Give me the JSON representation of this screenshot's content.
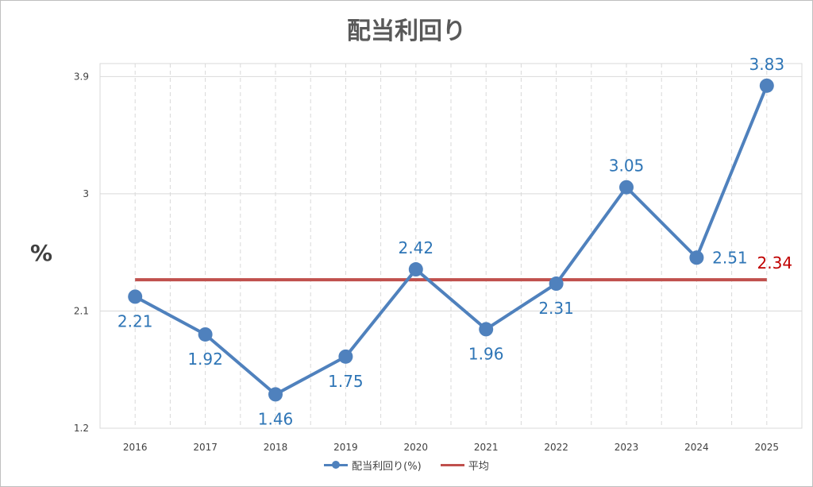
{
  "chart_data": {
    "type": "line",
    "title": "配当利回り",
    "ylabel": "%",
    "xlabel": "",
    "categories": [
      "2016",
      "2017",
      "2018",
      "2019",
      "2020",
      "2021",
      "2022",
      "2023",
      "2024",
      "2025"
    ],
    "ylim": [
      1.2,
      4.0
    ],
    "yticks": [
      "1.2",
      "2.1",
      "3",
      "3.9"
    ],
    "grid": true,
    "legend_position": "bottom",
    "series": [
      {
        "name": "配当利回り(%)",
        "values": [
          2.21,
          1.92,
          1.46,
          1.75,
          2.42,
          1.96,
          2.31,
          3.05,
          2.51,
          3.83
        ],
        "labels": [
          "2.21",
          "1.92",
          "1.46",
          "1.75",
          "2.42",
          "1.96",
          "2.31",
          "3.05",
          "2.51",
          "3.83"
        ],
        "color": "#4f81bd",
        "label_color": "#2e75b6"
      },
      {
        "name": "平均",
        "value": 2.34,
        "label": "2.34",
        "color": "#c0504d",
        "label_color": "#c00000"
      }
    ]
  }
}
